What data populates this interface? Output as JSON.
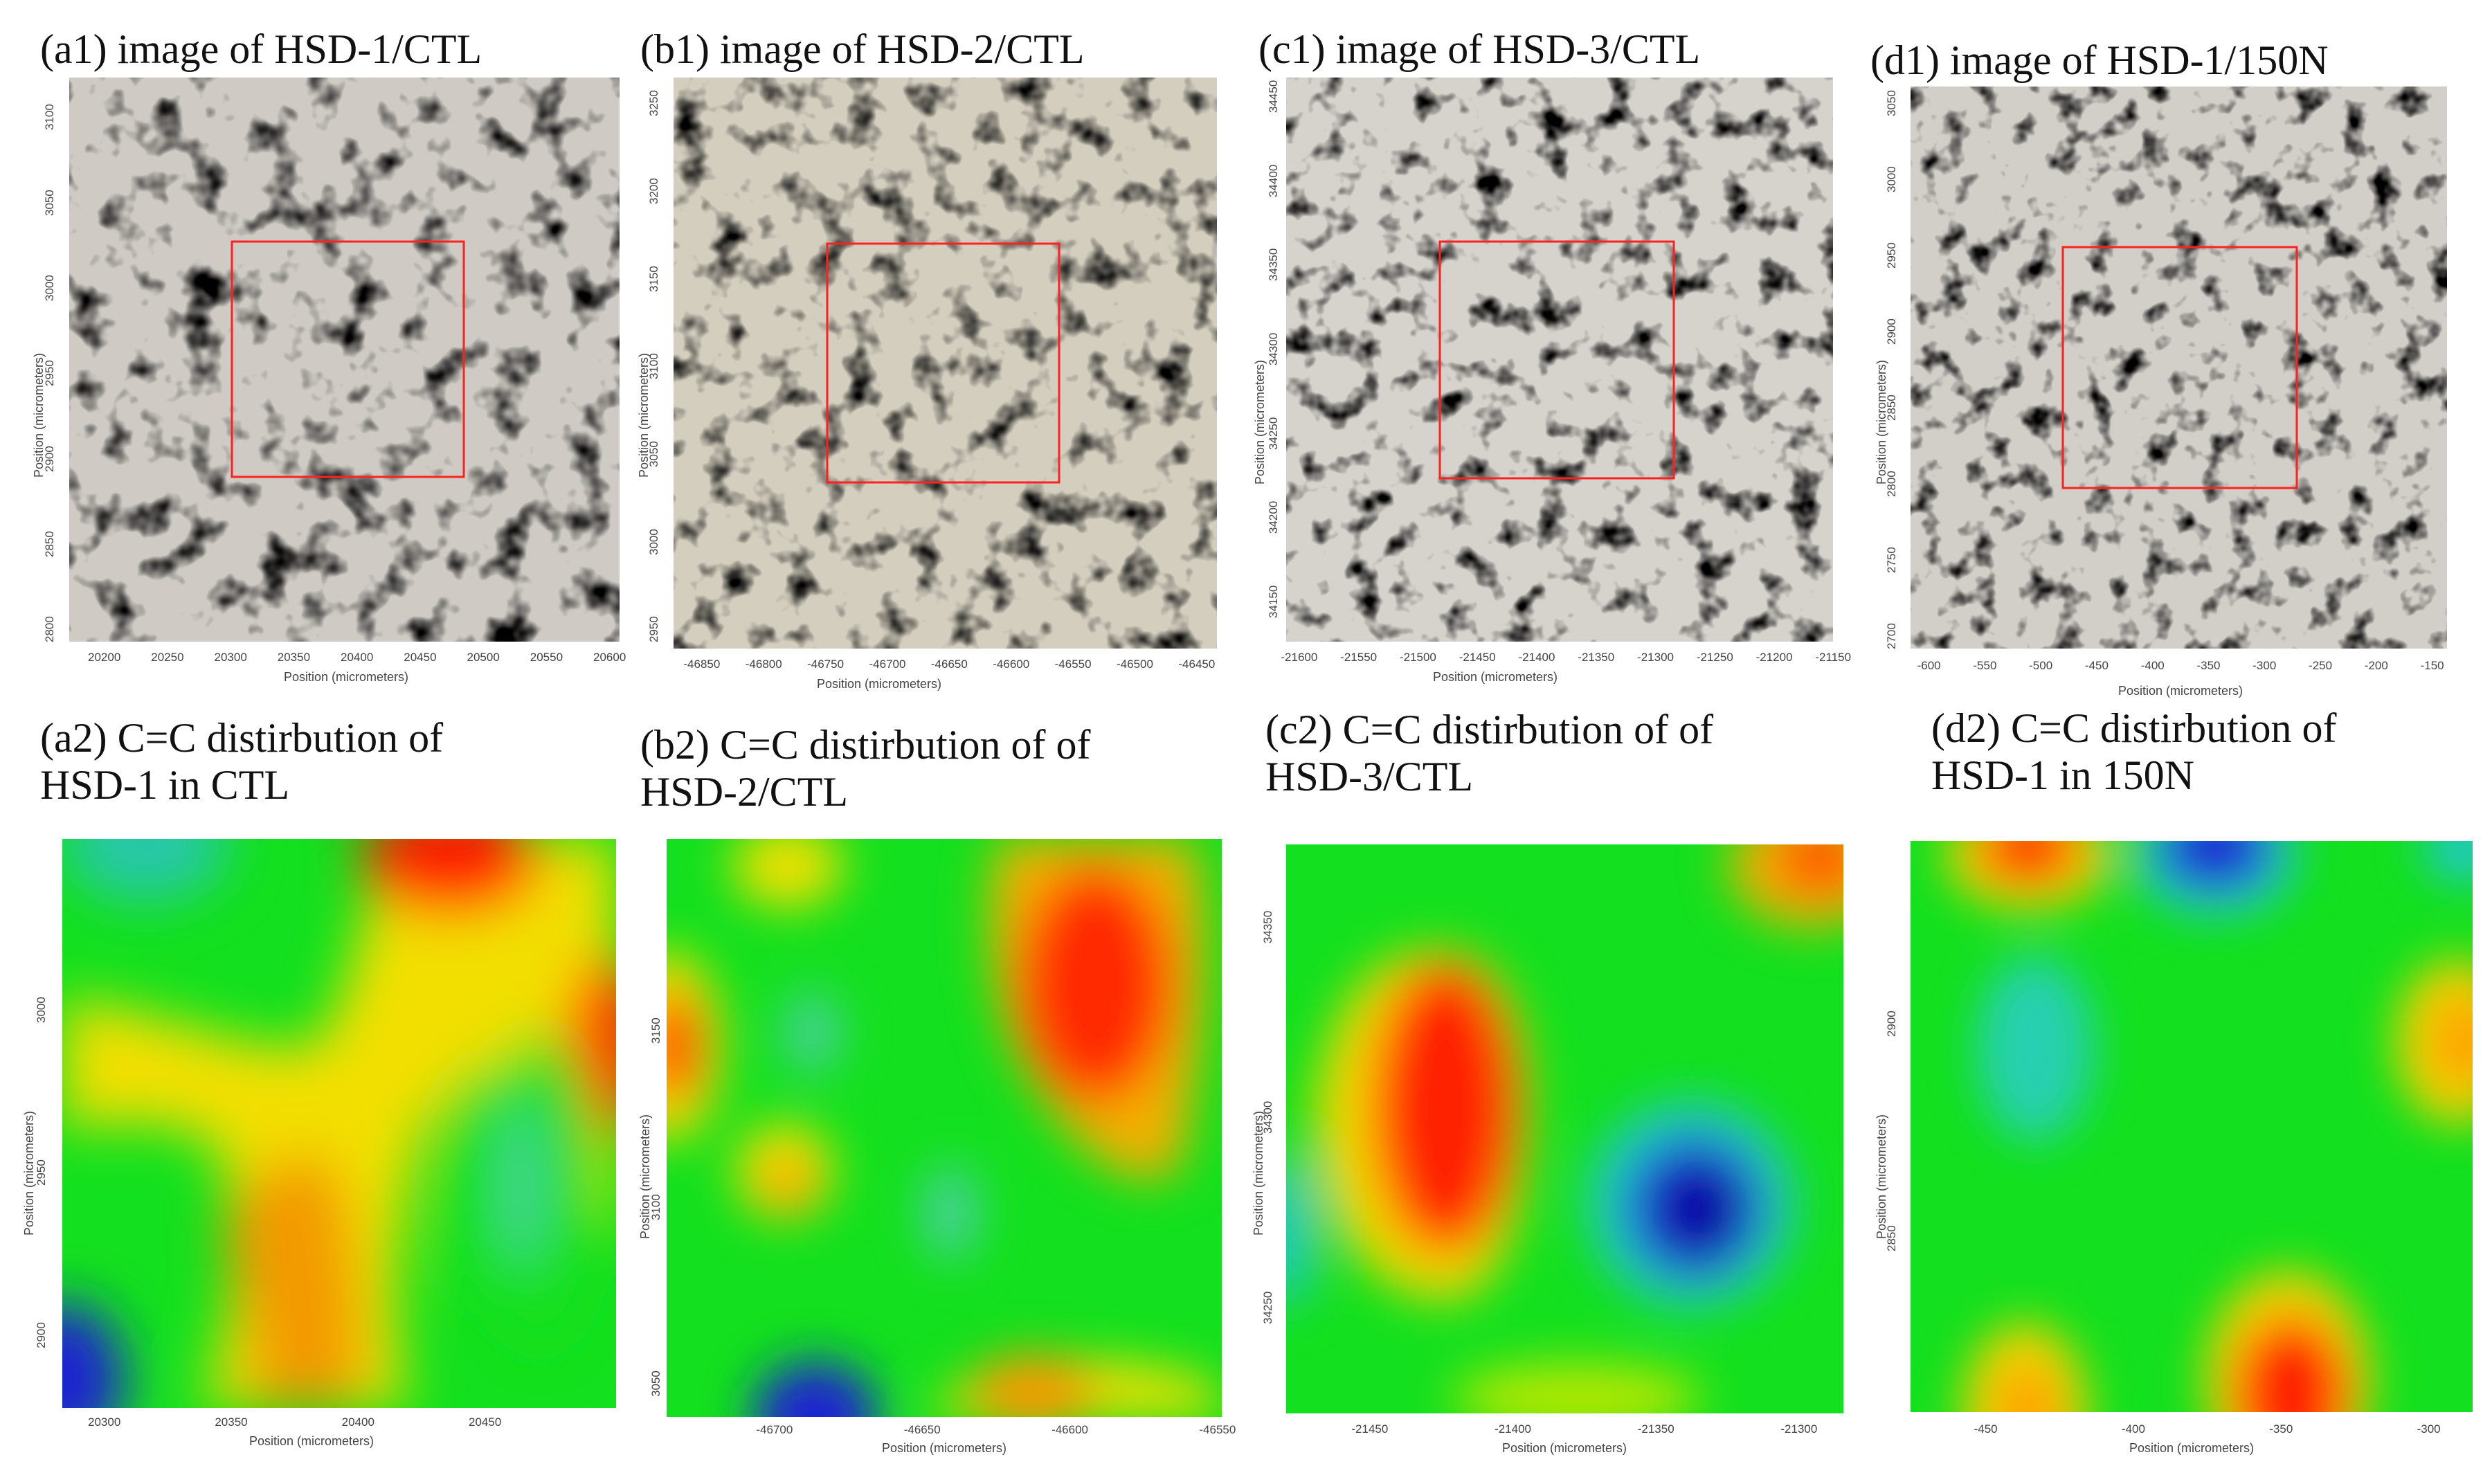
{
  "panels_top": [
    {
      "id": "a1",
      "title": "(a1) image of HSD-1/CTL",
      "xticks": [
        "20200",
        "20250",
        "20300",
        "20350",
        "20400",
        "20450",
        "20500",
        "20550",
        "20600"
      ],
      "yticks": [
        "3100",
        "3050",
        "3000",
        "2950",
        "2900",
        "2850",
        "2800"
      ],
      "xlabel": "Position (micrometers)",
      "ylabel": "Position (micrometers)"
    },
    {
      "id": "b1",
      "title": "(b1) image of HSD-2/CTL",
      "xticks": [
        "-46850",
        "-46800",
        "-46750",
        "-46700",
        "-46650",
        "-46600",
        "-46550",
        "-46500",
        "-46450"
      ],
      "yticks": [
        "3250",
        "3200",
        "3150",
        "3100",
        "3050",
        "3000",
        "2950"
      ],
      "xlabel": "Position (micrometers)",
      "ylabel": "Position (micrometers)"
    },
    {
      "id": "c1",
      "title": "(c1) image of HSD-3/CTL",
      "xticks": [
        "-21600",
        "-21550",
        "-21500",
        "-21450",
        "-21400",
        "-21350",
        "-21300",
        "-21250",
        "-21200",
        "-21150"
      ],
      "yticks": [
        "34450",
        "34400",
        "34350",
        "34300",
        "34250",
        "34200",
        "34150"
      ],
      "xlabel": "Position (micrometers)",
      "ylabel": "Position (micrometers)"
    },
    {
      "id": "d1",
      "title": "(d1) image of HSD-1/150N",
      "xticks": [
        "-600",
        "-550",
        "-500",
        "-450",
        "-400",
        "-350",
        "-300",
        "-250",
        "-200",
        "-150"
      ],
      "yticks": [
        "3050",
        "3000",
        "2950",
        "2900",
        "2850",
        "2800",
        "2750",
        "2700"
      ],
      "xlabel": "Position (micrometers)",
      "ylabel": "Position (micrometers)"
    }
  ],
  "panels_bottom": [
    {
      "id": "a2",
      "title": "(a2) C=C distirbution of HSD-1 in CTL",
      "xticks": [
        "20300",
        "20350",
        "20400",
        "20450"
      ],
      "yticks": [
        "3000",
        "2950",
        "2900"
      ],
      "xlabel": "Position (micrometers)",
      "ylabel": "Position (micrometers)"
    },
    {
      "id": "b2",
      "title": "(b2) C=C distirbution of of HSD-2/CTL",
      "xticks": [
        "-46700",
        "-46650",
        "-46600",
        "-46550"
      ],
      "yticks": [
        "3150",
        "3100",
        "3050"
      ],
      "xlabel": "Position (micrometers)",
      "ylabel": "Position (micrometers)"
    },
    {
      "id": "c2",
      "title": "(c2) C=C distirbution of of HSD-3/CTL",
      "xticks": [
        "-21450",
        "-21400",
        "-21350",
        "-21300"
      ],
      "yticks": [
        "34350",
        "34300",
        "34250"
      ],
      "xlabel": "Position (micrometers)",
      "ylabel": "Position (micrometers)"
    },
    {
      "id": "d2",
      "title": "(d2) C=C distirbution of HSD-1 in 150N",
      "xticks": [
        "-450",
        "-400",
        "-350",
        "-300"
      ],
      "yticks": [
        "2900",
        "2850"
      ],
      "xlabel": "Position (micrometers)",
      "ylabel": "Position (micrometers)"
    }
  ],
  "colors": {
    "selection_box": "#ff2020",
    "heat_green": "#13e01e",
    "heat_yellow": "#f4e000",
    "heat_red": "#ff1e00",
    "heat_blue": "#1a20d0",
    "heat_cyan": "#20c8c8"
  }
}
